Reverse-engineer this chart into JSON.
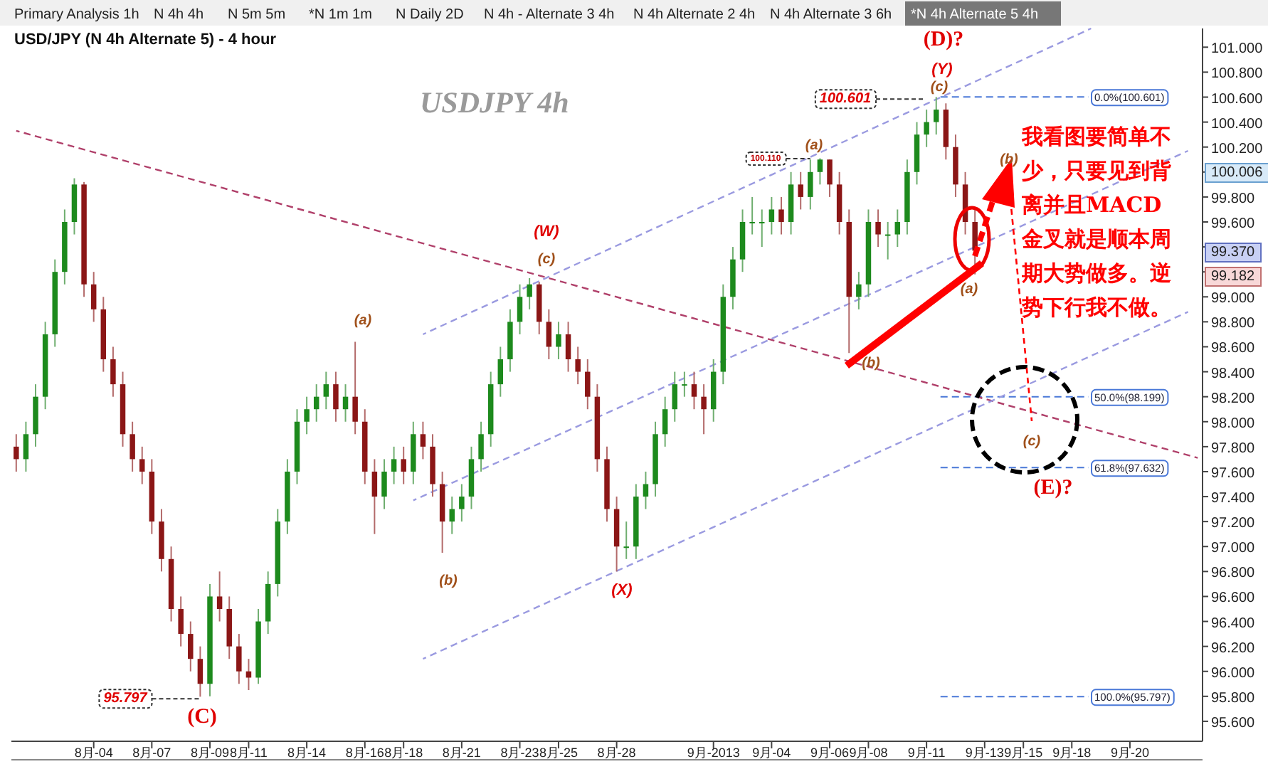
{
  "chart_data": {
    "type": "candlestick",
    "title": "USD/JPY (N 4h Alternate 5) - 4 hour",
    "categories": [
      null,
      null,
      null,
      null,
      null,
      null,
      null,
      null,
      "8月-04",
      null,
      null,
      null,
      null,
      null,
      "8月-07",
      null,
      null,
      null,
      null,
      null,
      "8月-09",
      null,
      null,
      null,
      "8月-11",
      null,
      null,
      null,
      null,
      null,
      "8月-14",
      null,
      null,
      null,
      null,
      null,
      "8月-16",
      null,
      null,
      null,
      "8月-18",
      null,
      null,
      null,
      null,
      null,
      "8月-21",
      null,
      null,
      null,
      null,
      null,
      "8月-23",
      null,
      null,
      null,
      "8月-25",
      null,
      null,
      null,
      null,
      null,
      "8月-28",
      null,
      null,
      null,
      null,
      null,
      null,
      null,
      null,
      null,
      "9月-2013",
      null,
      null,
      null,
      null,
      null,
      "9月-04",
      null,
      null,
      null,
      null,
      null,
      "9月-06",
      null,
      null,
      null,
      "9月-08",
      null,
      null,
      null,
      null,
      null,
      "9月-11",
      null,
      null,
      null,
      null,
      null,
      "9月-13",
      null,
      null,
      null,
      "9月-15",
      null,
      null,
      null,
      null,
      "9月-18",
      null,
      null,
      null,
      null,
      null,
      "9月-20",
      null,
      null,
      null,
      null,
      null,
      null,
      null
    ],
    "ohlc": [
      [
        97.8,
        97.9,
        97.6,
        97.7
      ],
      [
        97.7,
        98.0,
        97.6,
        97.9
      ],
      [
        97.9,
        98.3,
        97.8,
        98.2
      ],
      [
        98.2,
        98.8,
        98.1,
        98.7
      ],
      [
        98.7,
        99.3,
        98.6,
        99.2
      ],
      [
        99.2,
        99.7,
        99.1,
        99.6
      ],
      [
        99.6,
        99.95,
        99.5,
        99.9
      ],
      [
        99.9,
        99.92,
        99.0,
        99.1
      ],
      [
        99.1,
        99.2,
        98.8,
        98.9
      ],
      [
        98.9,
        99.0,
        98.4,
        98.5
      ],
      [
        98.5,
        98.6,
        98.2,
        98.3
      ],
      [
        98.3,
        98.4,
        97.8,
        97.9
      ],
      [
        97.9,
        98.0,
        97.6,
        97.7
      ],
      [
        97.7,
        97.8,
        97.5,
        97.6
      ],
      [
        97.6,
        97.7,
        97.1,
        97.2
      ],
      [
        97.2,
        97.3,
        96.8,
        96.9
      ],
      [
        96.9,
        97.0,
        96.4,
        96.5
      ],
      [
        96.5,
        96.6,
        96.2,
        96.3
      ],
      [
        96.3,
        96.4,
        96.0,
        96.1
      ],
      [
        96.1,
        96.2,
        95.797,
        95.9
      ],
      [
        95.9,
        96.7,
        95.8,
        96.6
      ],
      [
        96.6,
        96.8,
        96.4,
        96.5
      ],
      [
        96.5,
        96.6,
        96.1,
        96.2
      ],
      [
        96.2,
        96.3,
        95.9,
        96.0
      ],
      [
        96.0,
        96.1,
        95.85,
        95.95
      ],
      [
        95.95,
        96.5,
        95.9,
        96.4
      ],
      [
        96.4,
        96.8,
        96.3,
        96.7
      ],
      [
        96.7,
        97.3,
        96.6,
        97.2
      ],
      [
        97.2,
        97.7,
        97.1,
        97.6
      ],
      [
        97.6,
        98.1,
        97.5,
        98.0
      ],
      [
        98.0,
        98.2,
        97.9,
        98.1
      ],
      [
        98.1,
        98.3,
        98.0,
        98.2
      ],
      [
        98.2,
        98.4,
        98.1,
        98.3
      ],
      [
        98.3,
        98.4,
        98.0,
        98.1
      ],
      [
        98.1,
        98.3,
        98.0,
        98.2
      ],
      [
        98.2,
        98.64,
        97.9,
        98.0
      ],
      [
        98.0,
        98.1,
        97.5,
        97.6
      ],
      [
        97.6,
        97.7,
        97.1,
        97.4
      ],
      [
        97.4,
        97.7,
        97.3,
        97.6
      ],
      [
        97.6,
        97.8,
        97.5,
        97.7
      ],
      [
        97.7,
        97.8,
        97.5,
        97.6
      ],
      [
        97.6,
        98.0,
        97.5,
        97.9
      ],
      [
        97.9,
        98.0,
        97.7,
        97.8
      ],
      [
        97.8,
        97.9,
        97.4,
        97.5
      ],
      [
        97.5,
        97.6,
        96.95,
        97.2
      ],
      [
        97.2,
        97.4,
        97.1,
        97.3
      ],
      [
        97.3,
        97.5,
        97.2,
        97.4
      ],
      [
        97.4,
        97.8,
        97.3,
        97.7
      ],
      [
        97.7,
        98.0,
        97.6,
        97.9
      ],
      [
        97.9,
        98.4,
        97.8,
        98.3
      ],
      [
        98.3,
        98.6,
        98.2,
        98.5
      ],
      [
        98.5,
        98.9,
        98.4,
        98.8
      ],
      [
        98.8,
        99.1,
        98.7,
        99.0
      ],
      [
        99.0,
        99.15,
        98.9,
        99.1
      ],
      [
        99.1,
        99.12,
        98.7,
        98.8
      ],
      [
        98.8,
        98.9,
        98.5,
        98.6
      ],
      [
        98.6,
        98.8,
        98.5,
        98.7
      ],
      [
        98.7,
        98.8,
        98.4,
        98.5
      ],
      [
        98.5,
        98.6,
        98.3,
        98.4
      ],
      [
        98.4,
        98.5,
        98.1,
        98.2
      ],
      [
        98.2,
        98.3,
        97.6,
        97.7
      ],
      [
        97.7,
        97.8,
        97.2,
        97.3
      ],
      [
        97.3,
        97.4,
        96.8,
        97.0
      ],
      [
        97.0,
        97.2,
        96.9,
        97.0
      ],
      [
        97.0,
        97.5,
        96.9,
        97.4
      ],
      [
        97.4,
        97.6,
        97.3,
        97.5
      ],
      [
        97.5,
        98.0,
        97.4,
        97.9
      ],
      [
        97.9,
        98.2,
        97.8,
        98.1
      ],
      [
        98.1,
        98.4,
        98.0,
        98.3
      ],
      [
        98.3,
        98.4,
        98.2,
        98.3
      ],
      [
        98.3,
        98.4,
        98.1,
        98.2
      ],
      [
        98.2,
        98.3,
        97.9,
        98.1
      ],
      [
        98.1,
        98.5,
        98.0,
        98.4
      ],
      [
        98.4,
        99.1,
        98.3,
        99.0
      ],
      [
        99.0,
        99.4,
        98.9,
        99.3
      ],
      [
        99.3,
        99.7,
        99.2,
        99.6
      ],
      [
        99.6,
        99.8,
        99.5,
        99.6
      ],
      [
        99.6,
        99.7,
        99.4,
        99.6
      ],
      [
        99.6,
        99.8,
        99.5,
        99.7
      ],
      [
        99.7,
        99.8,
        99.5,
        99.6
      ],
      [
        99.6,
        100.0,
        99.5,
        99.9
      ],
      [
        99.9,
        100.0,
        99.7,
        99.8
      ],
      [
        99.8,
        100.1,
        99.7,
        100.0
      ],
      [
        100.0,
        100.11,
        99.9,
        100.1
      ],
      [
        100.1,
        100.1,
        99.8,
        99.9
      ],
      [
        99.9,
        100.0,
        99.5,
        99.6
      ],
      [
        99.6,
        99.7,
        98.55,
        99.0
      ],
      [
        99.0,
        99.2,
        98.9,
        99.1
      ],
      [
        99.1,
        99.7,
        99.0,
        99.6
      ],
      [
        99.6,
        99.7,
        99.4,
        99.5
      ],
      [
        99.5,
        99.6,
        99.3,
        99.5
      ],
      [
        99.5,
        99.7,
        99.4,
        99.6
      ],
      [
        99.6,
        100.1,
        99.5,
        100.0
      ],
      [
        100.0,
        100.4,
        99.9,
        100.3
      ],
      [
        100.3,
        100.5,
        100.2,
        100.4
      ],
      [
        100.4,
        100.601,
        100.3,
        100.5
      ],
      [
        100.5,
        100.55,
        100.1,
        100.2
      ],
      [
        100.2,
        100.3,
        99.8,
        99.9
      ],
      [
        99.9,
        100.0,
        99.5,
        99.6
      ],
      [
        99.6,
        99.7,
        99.18,
        99.37
      ],
      null,
      null,
      null,
      null,
      null,
      null,
      null,
      null,
      null,
      null,
      null,
      null,
      null,
      null,
      null,
      null,
      null,
      null,
      null,
      null,
      null,
      null,
      null
    ],
    "series": [
      {
        "type": "line",
        "color": "#b0406a",
        "line_style": "dashed",
        "values": [
          100.33,
          null,
          null,
          null,
          null,
          null,
          null,
          null,
          null,
          null,
          null,
          null,
          null,
          null,
          null,
          null,
          null,
          null,
          null,
          null,
          null,
          null,
          null,
          null,
          null,
          null,
          null,
          null,
          null,
          null,
          null,
          null,
          null,
          null,
          null,
          null,
          null,
          null,
          null,
          null,
          null,
          null,
          null,
          null,
          null,
          null,
          null,
          null,
          null,
          null,
          null,
          null,
          null,
          null,
          null,
          null,
          null,
          null,
          null,
          null,
          null,
          null,
          null,
          null,
          null,
          null,
          null,
          null,
          null,
          null,
          null,
          null,
          null,
          null,
          null,
          null,
          null,
          null,
          null,
          null,
          null,
          null,
          null,
          null,
          null,
          null,
          null,
          null,
          null,
          null,
          null,
          null,
          null,
          null,
          null,
          null,
          null,
          null,
          null,
          null,
          null,
          null,
          null,
          null,
          null,
          null,
          null,
          null,
          null,
          null,
          null,
          null,
          null,
          null,
          null,
          null,
          null,
          null,
          null,
          null,
          null,
          null,
          97.71
        ]
      },
      {
        "type": "line",
        "color": "#9a9ae0",
        "line_style": "dashed",
        "values": [
          null,
          null,
          null,
          null,
          null,
          null,
          null,
          null,
          null,
          null,
          null,
          null,
          null,
          null,
          null,
          null,
          null,
          null,
          null,
          null,
          null,
          null,
          null,
          null,
          null,
          null,
          null,
          null,
          null,
          null,
          null,
          null,
          null,
          null,
          null,
          null,
          null,
          null,
          null,
          null,
          null,
          null,
          98.7,
          null,
          null,
          null,
          null,
          null,
          null,
          null,
          null,
          null,
          null,
          null,
          null,
          null,
          null,
          null,
          null,
          null,
          null,
          null,
          null,
          null,
          null,
          null,
          null,
          null,
          null,
          null,
          null,
          null,
          null,
          null,
          null,
          null,
          null,
          null,
          null,
          null,
          null,
          null,
          null,
          null,
          null,
          null,
          null,
          null,
          null,
          null,
          null,
          null,
          null,
          null,
          null,
          null,
          null,
          null,
          null,
          null,
          null,
          null,
          null,
          null,
          null,
          null,
          null,
          null,
          null,
          null,
          null,
          101.15,
          null,
          null,
          null,
          null,
          null,
          null,
          null,
          null,
          null,
          null,
          null
        ]
      },
      {
        "type": "line",
        "color": "#9a9ae0",
        "line_style": "dashed",
        "values": [
          null,
          null,
          null,
          null,
          null,
          null,
          null,
          null,
          null,
          null,
          null,
          null,
          null,
          null,
          null,
          null,
          null,
          null,
          null,
          null,
          null,
          null,
          null,
          null,
          null,
          null,
          null,
          null,
          null,
          null,
          null,
          null,
          null,
          null,
          null,
          null,
          null,
          null,
          null,
          null,
          null,
          97.37,
          null,
          null,
          null,
          null,
          null,
          null,
          null,
          null,
          null,
          null,
          null,
          null,
          null,
          null,
          null,
          null,
          null,
          null,
          null,
          null,
          null,
          null,
          null,
          null,
          null,
          null,
          null,
          null,
          null,
          null,
          null,
          null,
          null,
          null,
          null,
          null,
          null,
          null,
          null,
          null,
          null,
          null,
          null,
          null,
          null,
          null,
          null,
          null,
          null,
          null,
          null,
          null,
          null,
          null,
          null,
          null,
          null,
          null,
          null,
          null,
          null,
          null,
          null,
          null,
          null,
          null,
          null,
          null,
          null,
          null,
          null,
          null,
          null,
          null,
          null,
          null,
          null,
          null,
          null,
          100.17,
          null
        ]
      },
      {
        "type": "line",
        "color": "#9a9ae0",
        "line_style": "dashed",
        "values": [
          null,
          null,
          null,
          null,
          null,
          null,
          null,
          null,
          null,
          null,
          null,
          null,
          null,
          null,
          null,
          null,
          null,
          null,
          null,
          null,
          null,
          null,
          null,
          null,
          null,
          null,
          null,
          null,
          null,
          null,
          null,
          null,
          null,
          null,
          null,
          null,
          null,
          null,
          null,
          null,
          null,
          null,
          96.1,
          null,
          null,
          null,
          null,
          null,
          null,
          null,
          null,
          null,
          null,
          null,
          null,
          null,
          null,
          null,
          null,
          null,
          null,
          null,
          null,
          null,
          null,
          null,
          null,
          null,
          null,
          null,
          null,
          null,
          null,
          null,
          null,
          null,
          null,
          null,
          null,
          null,
          null,
          null,
          null,
          null,
          null,
          null,
          null,
          null,
          null,
          null,
          null,
          null,
          null,
          null,
          null,
          null,
          null,
          null,
          null,
          null,
          null,
          null,
          null,
          null,
          null,
          null,
          null,
          null,
          null,
          null,
          null,
          null,
          null,
          null,
          null,
          null,
          null,
          null,
          null,
          null,
          null,
          98.88,
          null
        ]
      }
    ],
    "ylim": [
      95.44,
      101.15
    ],
    "yticks": [
      {
        "value": 95.6,
        "label": "95.600"
      },
      {
        "value": 95.8,
        "label": "95.800"
      },
      {
        "value": 96.0,
        "label": "96.000"
      },
      {
        "value": 96.2,
        "label": "96.200"
      },
      {
        "value": 96.4,
        "label": "96.400"
      },
      {
        "value": 96.6,
        "label": "96.600"
      },
      {
        "value": 96.8,
        "label": "96.800"
      },
      {
        "value": 97.0,
        "label": "97.000"
      },
      {
        "value": 97.2,
        "label": "97.200"
      },
      {
        "value": 97.4,
        "label": "97.400"
      },
      {
        "value": 97.6,
        "label": "97.600"
      },
      {
        "value": 97.8,
        "label": "97.800"
      },
      {
        "value": 98.0,
        "label": "98.000"
      },
      {
        "value": 98.2,
        "label": "98.200"
      },
      {
        "value": 98.4,
        "label": "98.400"
      },
      {
        "value": 98.6,
        "label": "98.600"
      },
      {
        "value": 98.8,
        "label": "98.800"
      },
      {
        "value": 99.0,
        "label": "99.000"
      },
      {
        "value": 99.2,
        "label": null
      },
      {
        "value": 99.4,
        "label": null
      },
      {
        "value": 99.6,
        "label": "99.600"
      },
      {
        "value": 99.8,
        "label": "99.800"
      },
      {
        "value": 100.0,
        "label": null
      },
      {
        "value": 100.2,
        "label": "100.200"
      },
      {
        "value": 100.4,
        "label": "100.400"
      },
      {
        "value": 100.6,
        "label": "100.600"
      },
      {
        "value": 100.8,
        "label": "100.800"
      },
      {
        "value": 101.0,
        "label": "101.000"
      }
    ],
    "ref_lines": [
      {
        "axis": "y",
        "value": 100.601,
        "label": "0.0%(100.601)",
        "color": "#4a78d8",
        "line_style": "dashed"
      },
      {
        "axis": "y",
        "value": 98.199,
        "label": "50.0%(98.199)",
        "color": "#4a78d8",
        "line_style": "dashed"
      },
      {
        "axis": "y",
        "value": 97.632,
        "label": "61.8%(97.632)",
        "color": "#4a78d8",
        "line_style": "dashed"
      },
      {
        "axis": "y",
        "value": 95.797,
        "label": "100.0%(95.797)",
        "color": "#4a78d8",
        "line_style": "dashed"
      }
    ],
    "annotations": [
      "USDJPY  4h",
      "我看图要简单不少，只要见到背离并且MACD金叉就是顺本周期大势做多。逆势下行我不做。",
      "Primary Analysis 1h",
      "N 4h 4h",
      "N 5m 5m",
      "*N 1m 1m",
      "N Daily 2D",
      "N 4h - Alternate 3 4h",
      "N 4h Alternate 2 4h",
      "N 4h Alternate 3 6h",
      "*N 4h Alternate 5 4h",
      "(C)",
      {
        "text": "95.797",
        "y": 95.797
      },
      "(a)",
      "(b)",
      "(W)",
      "(c)",
      "(X)",
      "(a)",
      "100.110",
      "(b)",
      "(D)?",
      "(Y)",
      "(c)",
      {
        "text": "100.601",
        "y": 100.601
      },
      "(b)",
      {
        "text": "(a)",
        "y": 99.18
      },
      "(c)",
      "(E)?",
      "100.006",
      "99.370",
      "99.182"
    ]
  }
}
